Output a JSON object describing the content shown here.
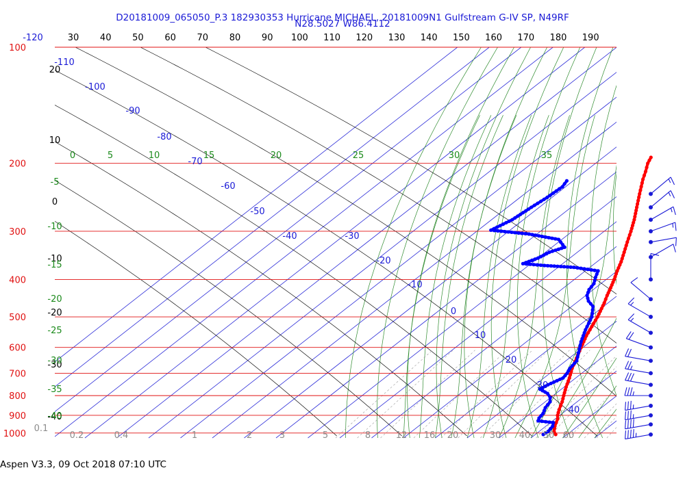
{
  "chart_data": {
    "type": "skew-t log-p sounding",
    "title": "D20181009_065050_P.3 182930353 Hurricane MICHAEL, 20181009N1 Gulfstream G-IV SP, N49RF",
    "subtitle": "N28.5027 W86.4112",
    "footer": "Aspen V3.3, 09 Oct 2018  07:10 UTC",
    "pressure_levels": [
      {
        "p": 100,
        "label": "100"
      },
      {
        "p": 200,
        "label": "200"
      },
      {
        "p": 300,
        "label": "300"
      },
      {
        "p": 400,
        "label": "400"
      },
      {
        "p": 500,
        "label": "500"
      },
      {
        "p": 600,
        "label": "600"
      },
      {
        "p": 700,
        "label": "700"
      },
      {
        "p": 800,
        "label": "800"
      },
      {
        "p": 900,
        "label": "900"
      },
      {
        "p": 1000,
        "label": "1000"
      }
    ],
    "top_axis_labels": [
      "-120",
      "30",
      "40",
      "50",
      "60",
      "70",
      "80",
      "90",
      "100",
      "110",
      "120",
      "130",
      "140",
      "150",
      "160",
      "170",
      "180",
      "190"
    ],
    "isotherm_labels": [
      "-110",
      "-100",
      "-90",
      "-80",
      "-70",
      "-60",
      "-50",
      "-40",
      "-30",
      "-20",
      "-10",
      "0",
      "10",
      "20",
      "30",
      "40"
    ],
    "height_labels": [
      "20",
      "10",
      "0",
      "-10",
      "-20",
      "-30",
      "-40"
    ],
    "theta_e_labels": [
      "0",
      "5",
      "10",
      "15",
      "20",
      "25",
      "30",
      "35"
    ],
    "dry_adiabat_labels": [
      "-5",
      "-10",
      "-15",
      "-20",
      "-25",
      "-30",
      "-35",
      "-40"
    ],
    "mixing_ratio_labels": [
      "0.1",
      "0.2",
      "0.4",
      "1",
      "2",
      "3",
      "5",
      "8",
      "12",
      "16",
      "20",
      "30",
      "40",
      "50",
      "60"
    ],
    "series": [
      {
        "name": "Temperature",
        "color": "#ff0000",
        "points": [
          {
            "p": 1009,
            "t": 26.4
          },
          {
            "p": 990,
            "t": 24.6
          },
          {
            "p": 960,
            "t": 22.8
          },
          {
            "p": 940,
            "t": 21.8
          },
          {
            "p": 920,
            "t": 20.8
          },
          {
            "p": 900,
            "t": 19.3
          },
          {
            "p": 870,
            "t": 17.5
          },
          {
            "p": 830,
            "t": 15.3
          },
          {
            "p": 800,
            "t": 13.3
          },
          {
            "p": 760,
            "t": 10.6
          },
          {
            "p": 720,
            "t": 8.0
          },
          {
            "p": 680,
            "t": 5.0
          },
          {
            "p": 640,
            "t": 2.3
          },
          {
            "p": 600,
            "t": -0.6
          },
          {
            "p": 560,
            "t": -3.6
          },
          {
            "p": 520,
            "t": -6.3
          },
          {
            "p": 500,
            "t": -7.7
          },
          {
            "p": 460,
            "t": -11.2
          },
          {
            "p": 440,
            "t": -13.3
          },
          {
            "p": 420,
            "t": -15.3
          },
          {
            "p": 400,
            "t": -17.5
          },
          {
            "p": 380,
            "t": -20.0
          },
          {
            "p": 360,
            "t": -22.4
          },
          {
            "p": 340,
            "t": -25.3
          },
          {
            "p": 320,
            "t": -28.4
          },
          {
            "p": 300,
            "t": -31.6
          },
          {
            "p": 280,
            "t": -35.2
          },
          {
            "p": 260,
            "t": -39.4
          },
          {
            "p": 240,
            "t": -43.9
          },
          {
            "p": 220,
            "t": -48.7
          },
          {
            "p": 210,
            "t": -51.0
          },
          {
            "p": 200,
            "t": -53.6
          },
          {
            "p": 193,
            "t": -55.0
          }
        ]
      },
      {
        "name": "Dew point",
        "color": "#0000ff",
        "points": [
          {
            "p": 1009,
            "t": 22.5
          },
          {
            "p": 990,
            "t": 22.8
          },
          {
            "p": 960,
            "t": 22.1
          },
          {
            "p": 940,
            "t": 20.9
          },
          {
            "p": 930,
            "t": 15.4
          },
          {
            "p": 915,
            "t": 14.6
          },
          {
            "p": 890,
            "t": 14.0
          },
          {
            "p": 860,
            "t": 12.4
          },
          {
            "p": 830,
            "t": 11.5
          },
          {
            "p": 810,
            "t": 9.9
          },
          {
            "p": 790,
            "t": 7.4
          },
          {
            "p": 770,
            "t": 3.3
          },
          {
            "p": 750,
            "t": 4.0
          },
          {
            "p": 720,
            "t": 6.0
          },
          {
            "p": 700,
            "t": 5.4
          },
          {
            "p": 680,
            "t": 4.3
          },
          {
            "p": 650,
            "t": 3.4
          },
          {
            "p": 620,
            "t": 0.8
          },
          {
            "p": 580,
            "t": -2.9
          },
          {
            "p": 540,
            "t": -6.3
          },
          {
            "p": 500,
            "t": -9.5
          },
          {
            "p": 470,
            "t": -13.3
          },
          {
            "p": 455,
            "t": -16.9
          },
          {
            "p": 440,
            "t": -19.6
          },
          {
            "p": 425,
            "t": -21.3
          },
          {
            "p": 410,
            "t": -22.2
          },
          {
            "p": 395,
            "t": -24.2
          },
          {
            "p": 380,
            "t": -26.0
          },
          {
            "p": 372,
            "t": -35.0
          },
          {
            "p": 368,
            "t": -45.0
          },
          {
            "p": 364,
            "t": -52.5
          },
          {
            "p": 352,
            "t": -50.0
          },
          {
            "p": 340,
            "t": -48.8
          },
          {
            "p": 330,
            "t": -46.0
          },
          {
            "p": 315,
            "t": -51.0
          },
          {
            "p": 305,
            "t": -62.5
          },
          {
            "p": 298,
            "t": -76.0
          },
          {
            "p": 280,
            "t": -73.5
          },
          {
            "p": 260,
            "t": -72.5
          },
          {
            "p": 245,
            "t": -71.5
          },
          {
            "p": 230,
            "t": -71.0
          },
          {
            "p": 222,
            "t": -72.0
          }
        ]
      }
    ],
    "winds": [
      {
        "p": 1009,
        "dir": 80,
        "spd": 45
      },
      {
        "p": 950,
        "dir": 80,
        "spd": 40
      },
      {
        "p": 900,
        "dir": 80,
        "spd": 35
      },
      {
        "p": 850,
        "dir": 80,
        "spd": 35
      },
      {
        "p": 800,
        "dir": 90,
        "spd": 35
      },
      {
        "p": 750,
        "dir": 100,
        "spd": 30
      },
      {
        "p": 700,
        "dir": 100,
        "spd": 25
      },
      {
        "p": 650,
        "dir": 100,
        "spd": 20
      },
      {
        "p": 600,
        "dir": 110,
        "spd": 20
      },
      {
        "p": 550,
        "dir": 120,
        "spd": 15
      },
      {
        "p": 500,
        "dir": 120,
        "spd": 15
      },
      {
        "p": 450,
        "dir": 130,
        "spd": 10
      },
      {
        "p": 400,
        "dir": 180,
        "spd": 10
      },
      {
        "p": 350,
        "dir": 240,
        "spd": 10
      },
      {
        "p": 320,
        "dir": 260,
        "spd": 10
      },
      {
        "p": 300,
        "dir": 250,
        "spd": 15
      },
      {
        "p": 280,
        "dir": 240,
        "spd": 15
      },
      {
        "p": 260,
        "dir": 230,
        "spd": 15
      },
      {
        "p": 240,
        "dir": 230,
        "spd": 15
      }
    ]
  }
}
